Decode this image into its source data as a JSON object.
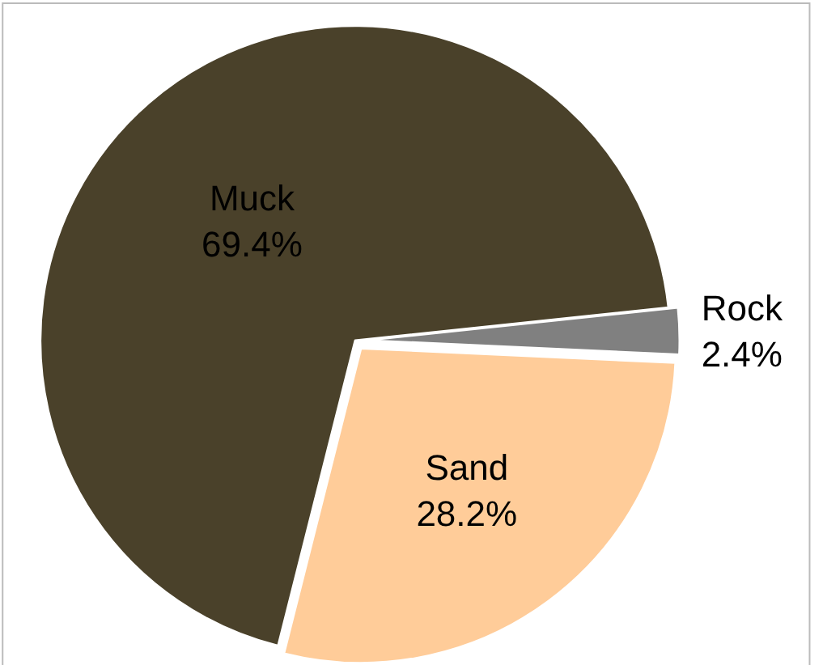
{
  "chart_data": {
    "type": "pie",
    "categories": [
      "Rock",
      "Sand",
      "Muck"
    ],
    "values": [
      2.4,
      28.2,
      69.4
    ],
    "value_labels": [
      "2.4%",
      "28.2%",
      "69.4%"
    ],
    "colors": [
      "#808080",
      "#ffcc99",
      "#4a412a"
    ],
    "legend": false
  }
}
